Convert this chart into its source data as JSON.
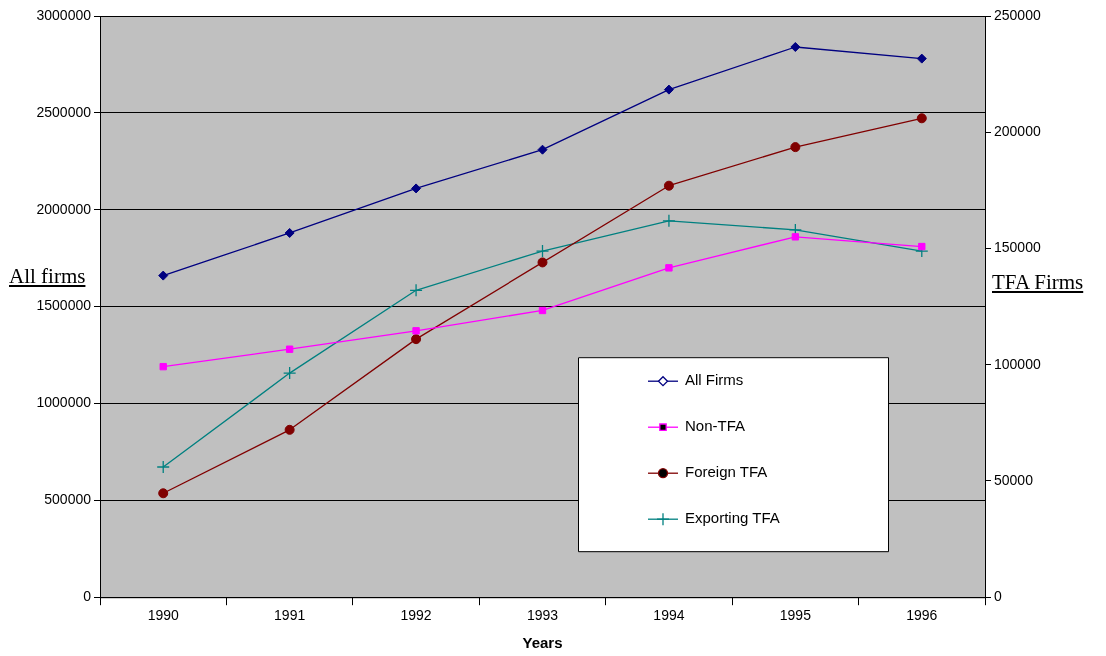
{
  "chart_data": {
    "type": "line",
    "xlabel": "Years",
    "ylabel": "All firms",
    "y2label": "TFA Firms",
    "categories": [
      "1990",
      "1991",
      "1992",
      "1993",
      "1994",
      "1995",
      "1996"
    ],
    "series": [
      {
        "name": "All Firms",
        "color": "#000080",
        "marker": "diamond",
        "values": [
          1660000,
          1880000,
          2110000,
          2310000,
          2620000,
          2840000,
          2780000
        ]
      },
      {
        "name": "Non-TFA",
        "color": "#ff00ff",
        "marker": "square",
        "values": [
          1190000,
          1280000,
          1375000,
          1480000,
          1700000,
          1860000,
          1810000
        ]
      },
      {
        "name": "Foreign TFA",
        "color": "#800000",
        "marker": "circle",
        "axis": "y2",
        "values": [
          44700,
          72000,
          111000,
          144000,
          177000,
          193600,
          206000
        ]
      },
      {
        "name": "Exporting TFA",
        "color": "#008080",
        "marker": "cross",
        "axis": "y2",
        "values": [
          56000,
          96400,
          132000,
          148900,
          161900,
          158000,
          148900
        ]
      }
    ],
    "ylim": [
      0,
      3000000
    ],
    "yticks": [
      0,
      500000,
      1000000,
      1500000,
      2000000,
      2500000,
      3000000
    ],
    "y2lim": [
      0,
      250000
    ],
    "y2ticks": [
      0,
      50000,
      100000,
      150000,
      200000,
      250000
    ],
    "grid": "y",
    "legend": "bottom right",
    "line_style": "solid"
  }
}
